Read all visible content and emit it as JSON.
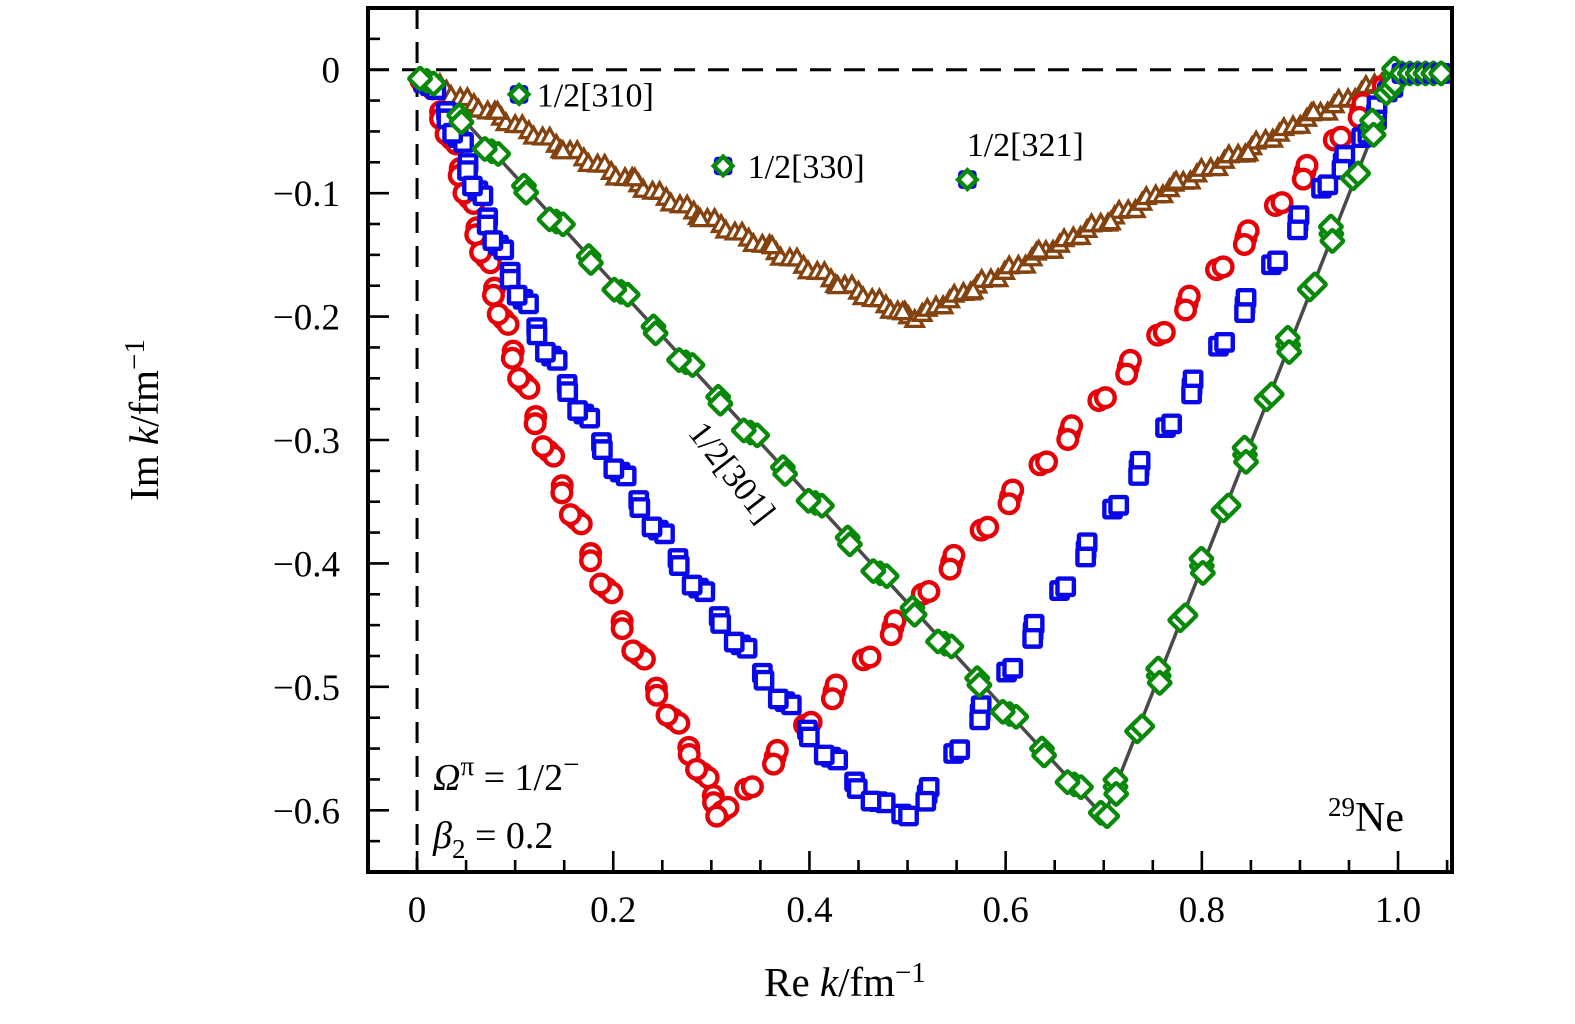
{
  "figure": {
    "nucleus": {
      "sup": "29",
      "name": "Ne"
    },
    "condition_omega": {
      "var": "Ω",
      "sup": "π",
      "rest": " = 1/2",
      "sup2": "−"
    },
    "condition_beta": {
      "var": "β",
      "sub": "2",
      "rest": " = 0.2"
    }
  },
  "axes": {
    "xlabel": {
      "prefix": "Re ",
      "var": "k",
      "unit": "/fm",
      "sup": "−1"
    },
    "ylabel": {
      "prefix": "Im ",
      "var": "k",
      "unit": "/fm",
      "sup": "−1"
    },
    "xlim": [
      -0.05,
      1.055
    ],
    "ylim": [
      -0.65,
      0.05
    ],
    "x_ticks": {
      "values": [
        0,
        0.2,
        0.4,
        0.6,
        0.8,
        1.0
      ],
      "labels": [
        "0",
        "0.2",
        "0.4",
        "0.6",
        "0.8",
        "1.0"
      ],
      "minor_step": 0.05
    },
    "y_ticks": {
      "values": [
        0,
        -0.1,
        -0.2,
        -0.3,
        -0.4,
        -0.5,
        -0.6
      ],
      "labels": [
        "0",
        "−0.1",
        "−0.2",
        "−0.3",
        "−0.4",
        "−0.5",
        "−0.6"
      ],
      "minor_step": 0.025
    }
  },
  "chart_data": {
    "type": "scatter",
    "title": "",
    "xlabel": "Re k/fm^-1",
    "ylabel": "Im k/fm^-1",
    "zero_lines": {
      "color": "#000000",
      "style": "dashed",
      "x": 0,
      "y": 0
    },
    "guide_line": {
      "color": "#4a4a4a",
      "points": [
        [
          0.004,
          -0.003
        ],
        [
          0.7,
          -0.605
        ],
        [
          0.996,
          -0.008
        ]
      ]
    },
    "series": [
      {
        "name": "1/2[310]",
        "marker": "triangle",
        "color": "#84420e",
        "clump": 2,
        "points": [
          [
            0.016,
            -0.012
          ],
          [
            0.03,
            -0.017
          ],
          [
            0.044,
            -0.023
          ],
          [
            0.058,
            -0.028
          ],
          [
            0.072,
            -0.034
          ],
          [
            0.086,
            -0.039
          ],
          [
            0.1,
            -0.045
          ],
          [
            0.114,
            -0.05
          ],
          [
            0.128,
            -0.055
          ],
          [
            0.142,
            -0.061
          ],
          [
            0.156,
            -0.066
          ],
          [
            0.17,
            -0.072
          ],
          [
            0.184,
            -0.077
          ],
          [
            0.198,
            -0.083
          ],
          [
            0.212,
            -0.088
          ],
          [
            0.226,
            -0.093
          ],
          [
            0.24,
            -0.099
          ],
          [
            0.254,
            -0.104
          ],
          [
            0.268,
            -0.11
          ],
          [
            0.282,
            -0.115
          ],
          [
            0.296,
            -0.121
          ],
          [
            0.31,
            -0.126
          ],
          [
            0.324,
            -0.132
          ],
          [
            0.338,
            -0.137
          ],
          [
            0.352,
            -0.142
          ],
          [
            0.366,
            -0.148
          ],
          [
            0.38,
            -0.153
          ],
          [
            0.394,
            -0.159
          ],
          [
            0.408,
            -0.164
          ],
          [
            0.422,
            -0.17
          ],
          [
            0.436,
            -0.175
          ],
          [
            0.45,
            -0.18
          ],
          [
            0.464,
            -0.186
          ],
          [
            0.478,
            -0.191
          ],
          [
            0.49,
            -0.196
          ],
          [
            0.501,
            -0.2
          ],
          [
            0.515,
            -0.198
          ],
          [
            0.529,
            -0.192
          ],
          [
            0.543,
            -0.187
          ],
          [
            0.557,
            -0.181
          ],
          [
            0.571,
            -0.175
          ],
          [
            0.585,
            -0.17
          ],
          [
            0.599,
            -0.164
          ],
          [
            0.613,
            -0.159
          ],
          [
            0.627,
            -0.153
          ],
          [
            0.641,
            -0.147
          ],
          [
            0.655,
            -0.142
          ],
          [
            0.669,
            -0.136
          ],
          [
            0.683,
            -0.13
          ],
          [
            0.697,
            -0.125
          ],
          [
            0.711,
            -0.119
          ],
          [
            0.725,
            -0.114
          ],
          [
            0.739,
            -0.108
          ],
          [
            0.753,
            -0.102
          ],
          [
            0.767,
            -0.097
          ],
          [
            0.781,
            -0.091
          ],
          [
            0.795,
            -0.085
          ],
          [
            0.809,
            -0.08
          ],
          [
            0.823,
            -0.074
          ],
          [
            0.837,
            -0.069
          ],
          [
            0.851,
            -0.063
          ],
          [
            0.865,
            -0.057
          ],
          [
            0.879,
            -0.052
          ],
          [
            0.893,
            -0.046
          ],
          [
            0.907,
            -0.04
          ],
          [
            0.921,
            -0.035
          ],
          [
            0.935,
            -0.029
          ],
          [
            0.949,
            -0.024
          ],
          [
            0.963,
            -0.018
          ],
          [
            0.976,
            -0.012
          ],
          [
            0.988,
            -0.007
          ]
        ]
      },
      {
        "name": "1/2[330]",
        "marker": "circle",
        "color": "#e60008",
        "clump": 3,
        "points": [
          [
            0.01,
            -0.012
          ],
          [
            0.024,
            -0.034
          ],
          [
            0.035,
            -0.056
          ],
          [
            0.044,
            -0.08
          ],
          [
            0.053,
            -0.104
          ],
          [
            0.061,
            -0.128
          ],
          [
            0.07,
            -0.152
          ],
          [
            0.079,
            -0.177
          ],
          [
            0.088,
            -0.202
          ],
          [
            0.098,
            -0.228
          ],
          [
            0.109,
            -0.254
          ],
          [
            0.121,
            -0.281
          ],
          [
            0.134,
            -0.309
          ],
          [
            0.148,
            -0.337
          ],
          [
            0.162,
            -0.364
          ],
          [
            0.177,
            -0.392
          ],
          [
            0.193,
            -0.42
          ],
          [
            0.209,
            -0.447
          ],
          [
            0.226,
            -0.474
          ],
          [
            0.244,
            -0.501
          ],
          [
            0.261,
            -0.526
          ],
          [
            0.277,
            -0.549
          ],
          [
            0.291,
            -0.57
          ],
          [
            0.302,
            -0.588
          ],
          [
            0.311,
            -0.601
          ],
          [
            0.335,
            -0.583
          ],
          [
            0.365,
            -0.557
          ],
          [
            0.395,
            -0.531
          ],
          [
            0.425,
            -0.504
          ],
          [
            0.455,
            -0.478
          ],
          [
            0.485,
            -0.452
          ],
          [
            0.515,
            -0.425
          ],
          [
            0.545,
            -0.399
          ],
          [
            0.575,
            -0.373
          ],
          [
            0.605,
            -0.346
          ],
          [
            0.635,
            -0.32
          ],
          [
            0.665,
            -0.294
          ],
          [
            0.695,
            -0.268
          ],
          [
            0.725,
            -0.241
          ],
          [
            0.755,
            -0.215
          ],
          [
            0.785,
            -0.189
          ],
          [
            0.815,
            -0.162
          ],
          [
            0.845,
            -0.136
          ],
          [
            0.875,
            -0.11
          ],
          [
            0.905,
            -0.083
          ],
          [
            0.935,
            -0.057
          ],
          [
            0.962,
            -0.033
          ],
          [
            0.985,
            -0.013
          ]
        ]
      },
      {
        "name": "1/2[321]",
        "marker": "square",
        "color": "#0808e8",
        "clump": 3,
        "points": [
          [
            0.013,
            -0.013
          ],
          [
            0.03,
            -0.034
          ],
          [
            0.042,
            -0.055
          ],
          [
            0.052,
            -0.076
          ],
          [
            0.062,
            -0.098
          ],
          [
            0.072,
            -0.12
          ],
          [
            0.083,
            -0.142
          ],
          [
            0.095,
            -0.164
          ],
          [
            0.108,
            -0.186
          ],
          [
            0.122,
            -0.209
          ],
          [
            0.137,
            -0.232
          ],
          [
            0.153,
            -0.255
          ],
          [
            0.17,
            -0.279
          ],
          [
            0.188,
            -0.302
          ],
          [
            0.207,
            -0.326
          ],
          [
            0.226,
            -0.349
          ],
          [
            0.246,
            -0.373
          ],
          [
            0.266,
            -0.396
          ],
          [
            0.287,
            -0.42
          ],
          [
            0.308,
            -0.443
          ],
          [
            0.33,
            -0.466
          ],
          [
            0.352,
            -0.489
          ],
          [
            0.375,
            -0.512
          ],
          [
            0.398,
            -0.535
          ],
          [
            0.422,
            -0.557
          ],
          [
            0.446,
            -0.577
          ],
          [
            0.47,
            -0.593
          ],
          [
            0.494,
            -0.603
          ],
          [
            0.52,
            -0.587
          ],
          [
            0.547,
            -0.554
          ],
          [
            0.574,
            -0.521
          ],
          [
            0.601,
            -0.488
          ],
          [
            0.628,
            -0.455
          ],
          [
            0.655,
            -0.422
          ],
          [
            0.682,
            -0.389
          ],
          [
            0.709,
            -0.356
          ],
          [
            0.736,
            -0.323
          ],
          [
            0.763,
            -0.29
          ],
          [
            0.79,
            -0.257
          ],
          [
            0.817,
            -0.224
          ],
          [
            0.844,
            -0.191
          ],
          [
            0.871,
            -0.158
          ],
          [
            0.898,
            -0.124
          ],
          [
            0.922,
            -0.096
          ],
          [
            0.944,
            -0.075
          ],
          [
            0.963,
            -0.055
          ],
          [
            0.978,
            -0.035
          ],
          [
            0.989,
            -0.018
          ]
        ]
      },
      {
        "name": "1/2[301]",
        "marker": "diamond",
        "color": "#098909",
        "clump": 3,
        "points": [
          [
            0.01,
            -0.009
          ],
          [
            0.043,
            -0.037
          ],
          [
            0.076,
            -0.066
          ],
          [
            0.109,
            -0.094
          ],
          [
            0.142,
            -0.123
          ],
          [
            0.175,
            -0.151
          ],
          [
            0.208,
            -0.18
          ],
          [
            0.241,
            -0.208
          ],
          [
            0.274,
            -0.237
          ],
          [
            0.307,
            -0.265
          ],
          [
            0.34,
            -0.294
          ],
          [
            0.373,
            -0.322
          ],
          [
            0.406,
            -0.351
          ],
          [
            0.439,
            -0.379
          ],
          [
            0.472,
            -0.408
          ],
          [
            0.505,
            -0.436
          ],
          [
            0.538,
            -0.465
          ],
          [
            0.571,
            -0.493
          ],
          [
            0.604,
            -0.522
          ],
          [
            0.637,
            -0.55
          ],
          [
            0.67,
            -0.579
          ],
          [
            0.697,
            -0.602
          ],
          [
            0.712,
            -0.581
          ],
          [
            0.734,
            -0.536
          ],
          [
            0.756,
            -0.491
          ],
          [
            0.778,
            -0.446
          ],
          [
            0.8,
            -0.402
          ],
          [
            0.822,
            -0.357
          ],
          [
            0.844,
            -0.312
          ],
          [
            0.866,
            -0.267
          ],
          [
            0.888,
            -0.223
          ],
          [
            0.91,
            -0.178
          ],
          [
            0.932,
            -0.133
          ],
          [
            0.954,
            -0.088
          ],
          [
            0.974,
            -0.047
          ],
          [
            0.988,
            -0.019
          ],
          [
            0.996,
            -0.005
          ]
        ]
      }
    ],
    "real_axis_tail": {
      "y": -0.003,
      "x": [
        1.004,
        1.012,
        1.02,
        1.028,
        1.036,
        1.044
      ]
    },
    "state_labels": [
      {
        "text": "1/2[310]",
        "marker_at": [
          0.104,
          -0.02
        ],
        "text_at": [
          0.122,
          -0.02
        ],
        "anchor": "start",
        "rotation": 0
      },
      {
        "text": "1/2[330]",
        "marker_at": [
          0.312,
          -0.078
        ],
        "text_at": [
          0.337,
          -0.078
        ],
        "anchor": "start",
        "rotation": 0
      },
      {
        "text": "1/2[321]",
        "marker_at": [
          0.561,
          -0.089
        ],
        "text_at": [
          0.62,
          -0.06
        ],
        "anchor": "middle",
        "rotation": 0
      },
      {
        "text": "1/2[301]",
        "marker_at": null,
        "text_at": [
          0.312,
          -0.322
        ],
        "anchor": "middle",
        "rotation": 52
      }
    ],
    "bound_marker_colors": {
      "circle": "#e60008",
      "square": "#0808e8",
      "diamond": "#098909"
    }
  }
}
